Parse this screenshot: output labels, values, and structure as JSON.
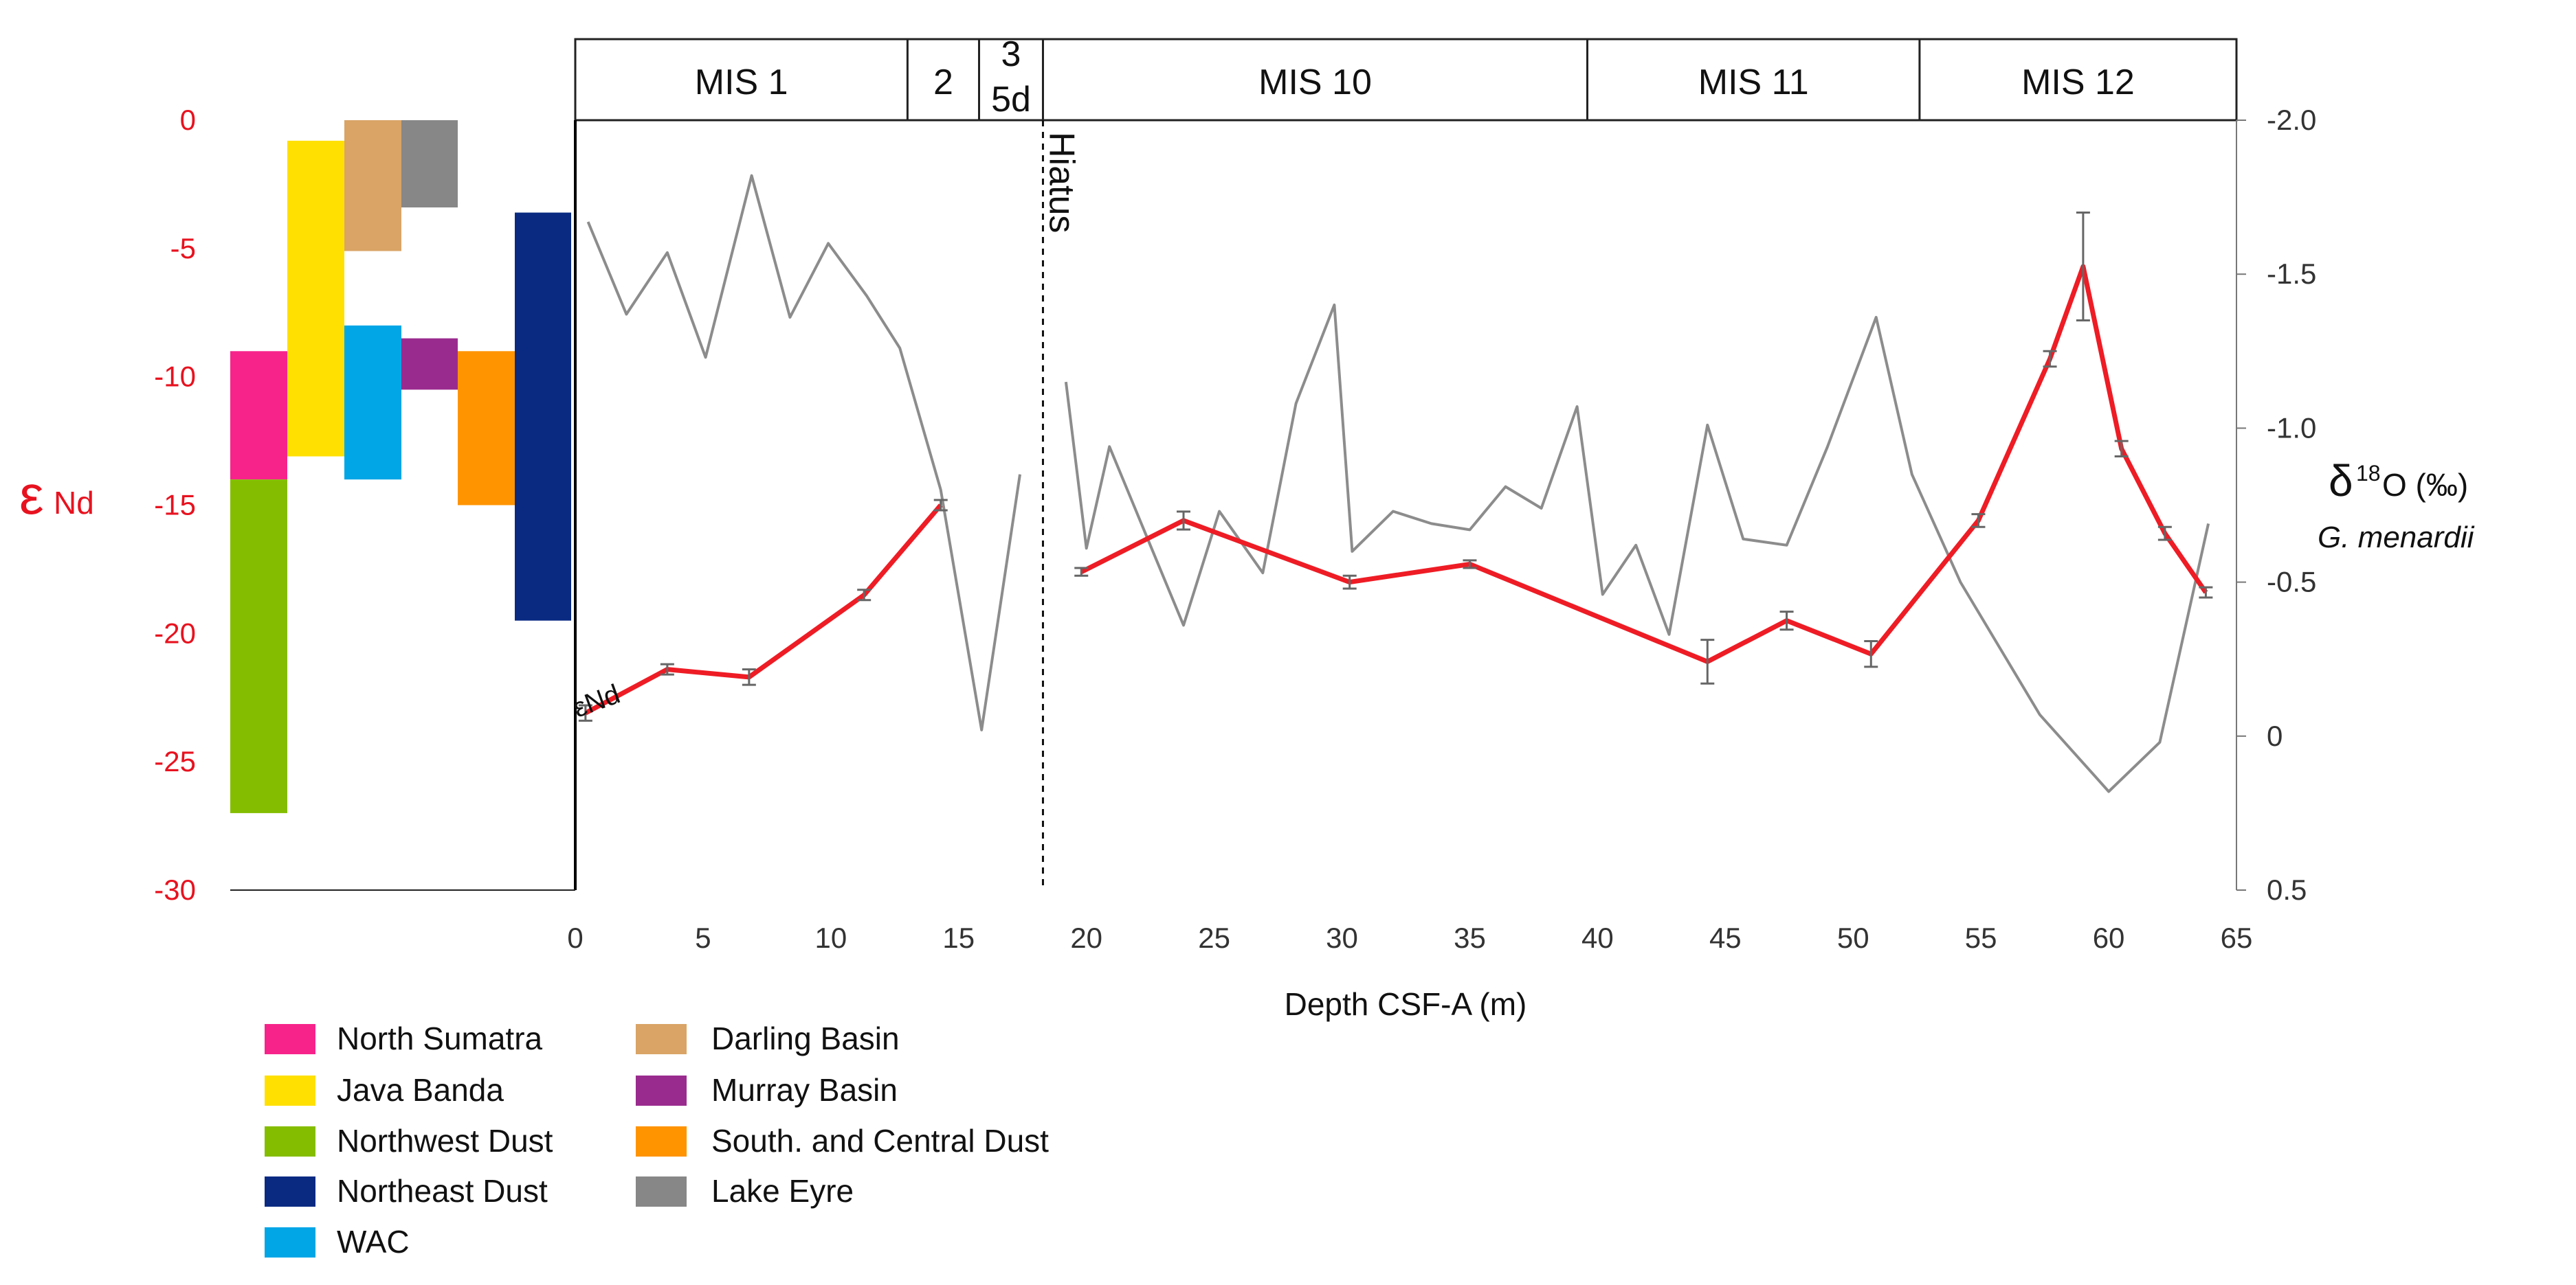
{
  "chart_data": {
    "type": "line",
    "x": {
      "label": "Depth CSF-A (m)",
      "range": [
        0,
        65
      ],
      "ticks": [
        0,
        5,
        10,
        15,
        20,
        25,
        30,
        35,
        40,
        45,
        50,
        55,
        60,
        65
      ]
    },
    "y_left": {
      "label_main": "ε",
      "label_sub": "Nd",
      "range": [
        -30,
        0
      ],
      "ticks": [
        0,
        -5,
        -10,
        -15,
        -20,
        -25,
        -30
      ]
    },
    "y_right": {
      "label_main": "δ",
      "label_sup": "18",
      "label_rest": "O (‰)",
      "label_species": "G. menardii",
      "range": [
        -2.0,
        0.5
      ],
      "reversed": true,
      "ticks": [
        "-2.0",
        "-1.5",
        "-1.0",
        "-0.5",
        "0",
        "0.5"
      ]
    },
    "mis_stages": [
      {
        "label": "MIS 1",
        "from": 0,
        "to": 13
      },
      {
        "label": "2",
        "from": 13,
        "to": 15.8
      },
      {
        "label": "3",
        "label2": "5d",
        "from": 15.8,
        "to": 18.3
      },
      {
        "label": "MIS 10",
        "from": 18.3,
        "to": 39.6
      },
      {
        "label": "MIS 11",
        "from": 39.6,
        "to": 52.6
      },
      {
        "label": "MIS 12",
        "from": 52.6,
        "to": 65
      }
    ],
    "hiatus": {
      "depth": 18.3,
      "label": "Hiatus"
    },
    "series": [
      {
        "name": "εNd",
        "axis": "left",
        "color": "#ee1c25",
        "segments": [
          [
            [
              0.4,
              -23.1
            ],
            [
              3.6,
              -21.4
            ],
            [
              6.8,
              -21.7
            ],
            [
              11.3,
              -18.5
            ],
            [
              14.3,
              -15.0
            ]
          ],
          [
            [
              19.8,
              -17.6
            ],
            [
              23.8,
              -15.6
            ],
            [
              30.3,
              -18.0
            ],
            [
              35.0,
              -17.3
            ],
            [
              44.3,
              -21.1
            ],
            [
              47.4,
              -19.5
            ],
            [
              50.7,
              -20.8
            ],
            [
              54.9,
              -15.6
            ],
            [
              57.7,
              -9.3
            ],
            [
              59.0,
              -5.7
            ],
            [
              60.5,
              -12.8
            ],
            [
              62.2,
              -16.1
            ],
            [
              63.8,
              -18.4
            ]
          ]
        ],
        "error_bars": [
          {
            "x": 0.4,
            "y": -23.1,
            "err": 0.3
          },
          {
            "x": 3.6,
            "y": -21.4,
            "err": 0.2
          },
          {
            "x": 6.8,
            "y": -21.7,
            "err": 0.3
          },
          {
            "x": 11.3,
            "y": -18.5,
            "err": 0.2
          },
          {
            "x": 14.3,
            "y": -15.0,
            "err": 0.2
          },
          {
            "x": 19.8,
            "y": -17.6,
            "err": 0.15
          },
          {
            "x": 23.8,
            "y": -15.6,
            "err": 0.35
          },
          {
            "x": 30.3,
            "y": -18.0,
            "err": 0.25
          },
          {
            "x": 35.0,
            "y": -17.3,
            "err": 0.15
          },
          {
            "x": 44.3,
            "y": -21.1,
            "err": 0.85
          },
          {
            "x": 47.4,
            "y": -19.5,
            "err": 0.35
          },
          {
            "x": 50.7,
            "y": -20.8,
            "err": 0.5
          },
          {
            "x": 54.9,
            "y": -15.6,
            "err": 0.25
          },
          {
            "x": 57.7,
            "y": -9.3,
            "err": 0.3
          },
          {
            "x": 59.0,
            "y": -5.7,
            "err": 2.1
          },
          {
            "x": 60.5,
            "y": -12.8,
            "err": 0.3
          },
          {
            "x": 62.2,
            "y": -16.1,
            "err": 0.25
          },
          {
            "x": 63.8,
            "y": -18.4,
            "err": 0.2
          }
        ]
      },
      {
        "name": "δ18O",
        "axis": "right",
        "color": "#8c8c8c",
        "segments": [
          [
            [
              0.5,
              -1.67
            ],
            [
              2.0,
              -1.37
            ],
            [
              3.6,
              -1.57
            ],
            [
              5.1,
              -1.23
            ],
            [
              6.9,
              -1.82
            ],
            [
              8.4,
              -1.36
            ],
            [
              9.9,
              -1.6
            ],
            [
              11.4,
              -1.43
            ],
            [
              12.7,
              -1.26
            ],
            [
              14.3,
              -0.8
            ],
            [
              15.9,
              -0.02
            ],
            [
              17.4,
              -0.85
            ]
          ],
          [
            [
              19.2,
              -1.15
            ],
            [
              20.0,
              -0.61
            ],
            [
              20.9,
              -0.94
            ],
            [
              22.4,
              -0.64
            ],
            [
              23.8,
              -0.36
            ],
            [
              25.2,
              -0.73
            ],
            [
              26.9,
              -0.53
            ],
            [
              28.2,
              -1.08
            ],
            [
              29.7,
              -1.4
            ],
            [
              30.4,
              -0.6
            ],
            [
              32.0,
              -0.73
            ],
            [
              33.5,
              -0.69
            ],
            [
              35.0,
              -0.67
            ],
            [
              36.4,
              -0.81
            ],
            [
              37.8,
              -0.74
            ],
            [
              39.2,
              -1.07
            ],
            [
              40.2,
              -0.46
            ],
            [
              41.5,
              -0.62
            ],
            [
              42.8,
              -0.33
            ],
            [
              44.3,
              -1.01
            ],
            [
              45.7,
              -0.64
            ],
            [
              47.4,
              -0.62
            ],
            [
              49.0,
              -0.94
            ],
            [
              50.9,
              -1.36
            ],
            [
              52.3,
              -0.85
            ],
            [
              54.2,
              -0.5
            ],
            [
              57.3,
              -0.07
            ],
            [
              60.0,
              0.18
            ],
            [
              62.0,
              0.02
            ],
            [
              63.9,
              -0.69
            ]
          ]
        ]
      }
    ],
    "series_label": "εNd",
    "source_bars": [
      {
        "name": "North Sumatra",
        "color": "#f7238b",
        "min": -14.0,
        "max": -9.0,
        "column": 0
      },
      {
        "name": "Java Banda",
        "color": "#ffe000",
        "min": -13.1,
        "max": -0.8,
        "column": 1
      },
      {
        "name": "Northwest Dust",
        "color": "#84bd00",
        "min": -27.0,
        "max": -14.0,
        "column": 0
      },
      {
        "name": "Northeast Dust",
        "color": "#0a2a82",
        "min": -19.5,
        "max": -3.6,
        "column": 5
      },
      {
        "name": "WAC",
        "color": "#00a6e6",
        "min": -14.0,
        "max": -8.0,
        "column": 2
      },
      {
        "name": "Darling Basin",
        "color": "#d9a466",
        "min": -5.1,
        "max": 0.0,
        "column": 2
      },
      {
        "name": "Murray Basin",
        "color": "#9a2b8e",
        "min": -10.5,
        "max": -8.5,
        "column": 3
      },
      {
        "name": "South. and Central Dust",
        "color": "#ff9400",
        "min": -15.0,
        "max": -9.0,
        "column": 4
      },
      {
        "name": "Lake Eyre",
        "color": "#878787",
        "min": -3.4,
        "max": 0.0,
        "column": 3
      }
    ]
  }
}
